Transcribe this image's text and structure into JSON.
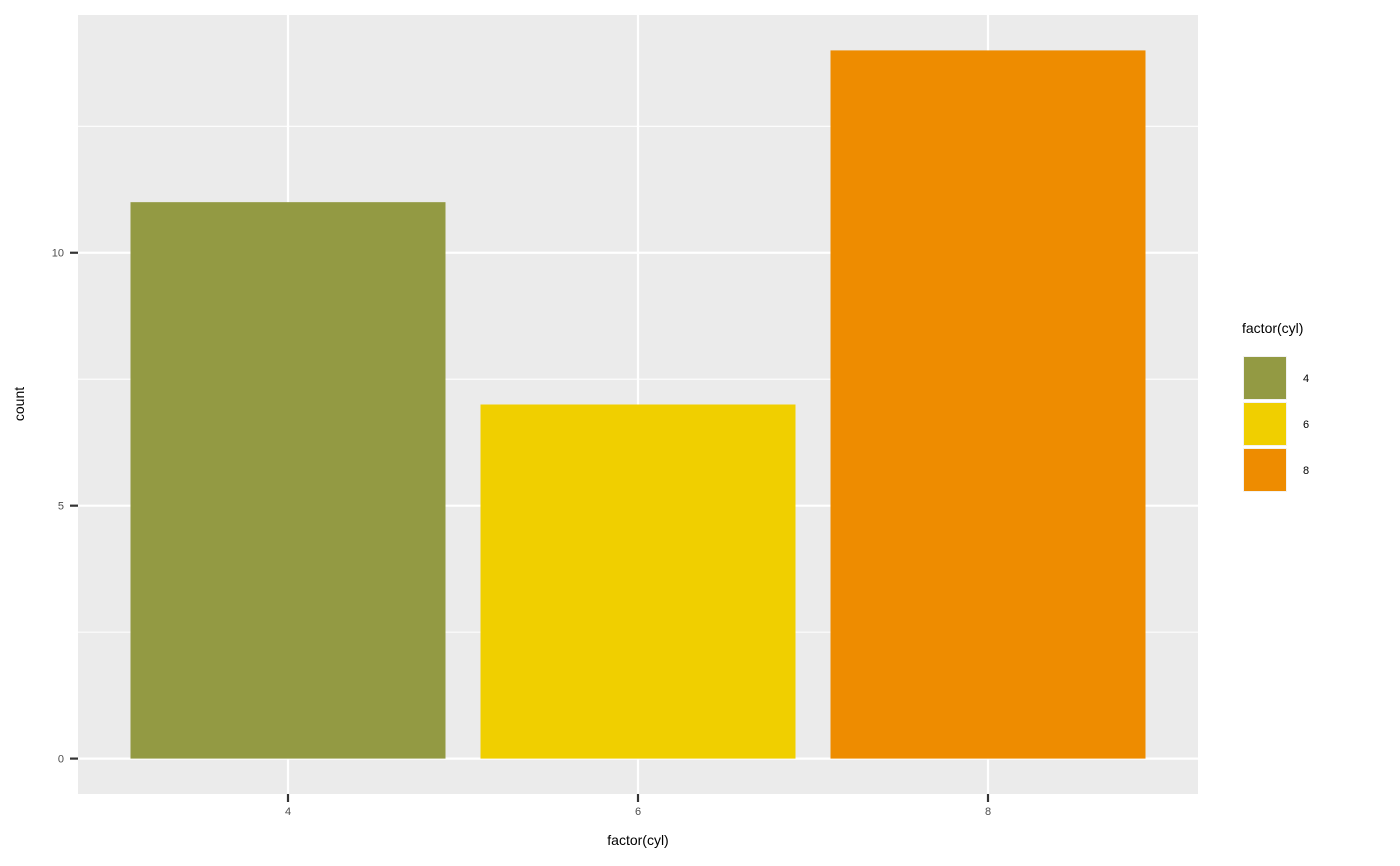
{
  "chart_data": {
    "type": "bar",
    "categories": [
      "4",
      "6",
      "8"
    ],
    "values": [
      11,
      7,
      14
    ],
    "colors": [
      "#939A43",
      "#F0CF00",
      "#EE8C00"
    ],
    "xlabel": "factor(cyl)",
    "ylabel": "count",
    "ylim": [
      -0.7,
      14.7
    ],
    "yticks": [
      0,
      5,
      10
    ],
    "ytick_labels": [
      "0",
      "5",
      "10"
    ],
    "grid": true,
    "background": "#EBEBEB",
    "legend": {
      "title": "factor(cyl)",
      "placement": "right",
      "entries": [
        "4",
        "6",
        "8"
      ]
    }
  }
}
